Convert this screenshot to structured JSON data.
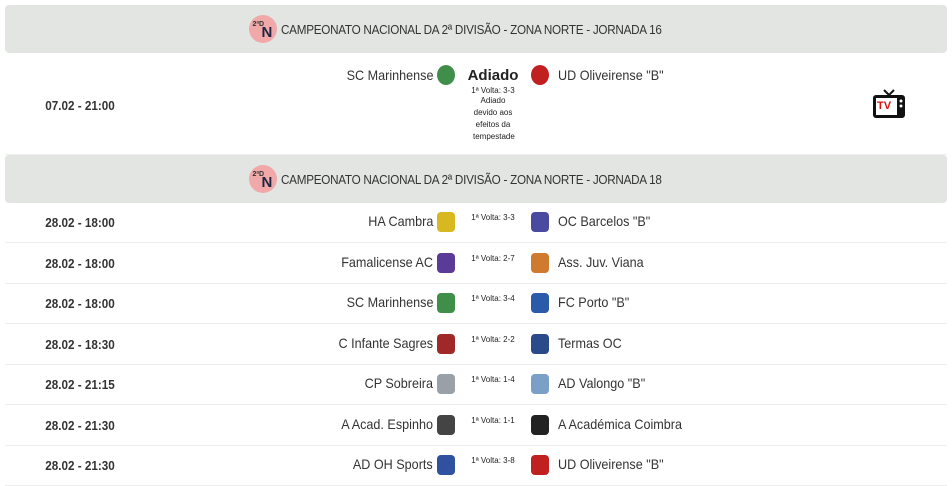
{
  "sections": [
    {
      "title": "CAMPEONATO NACIONAL DA 2ª DIVISÃO - ZONA NORTE - JORNADA 16",
      "logo_text": "2ªD FPP",
      "logo_letter": "N",
      "matches": [
        {
          "date": "07.02 - 21:00",
          "home": "SC Marinhense",
          "away": "UD Oliveirense \"B\"",
          "status": "Adiado",
          "note": "1ª Volta: 3-3",
          "detail": "Adiado devido aos efeitos da tempestade",
          "broadcast": "TV em Direto"
        }
      ]
    },
    {
      "title": "CAMPEONATO NACIONAL DA 2ª DIVISÃO - ZONA NORTE - JORNADA 18",
      "logo_text": "2ªD FPP",
      "logo_letter": "N",
      "matches": [
        {
          "date": "28.02 - 18:00",
          "home": "HA Cambra",
          "away": "OC Barcelos \"B\"",
          "note": "1ª Volta: 3-3",
          "home_color": "#d8b820",
          "away_color": "#4a4aa0"
        },
        {
          "date": "28.02 - 18:00",
          "home": "Famalicense AC",
          "away": "Ass. Juv. Viana",
          "note": "1ª Volta: 2-7",
          "home_color": "#5a3c98",
          "away_color": "#d07a30"
        },
        {
          "date": "28.02 - 18:00",
          "home": "SC Marinhense",
          "away": "FC Porto \"B\"",
          "note": "1ª Volta: 3-4",
          "home_color": "#3f8f4a",
          "away_color": "#2a5aa8"
        },
        {
          "date": "28.02 - 18:30",
          "home": "C Infante Sagres",
          "away": "Termas OC",
          "note": "1ª Volta: 2-2",
          "home_color": "#a02828",
          "away_color": "#2a4a8a"
        },
        {
          "date": "28.02 - 21:15",
          "home": "CP Sobreira",
          "away": "AD Valongo \"B\"",
          "note": "1ª Volta: 1-4",
          "home_color": "#9aa0a8",
          "away_color": "#7aa0c8"
        },
        {
          "date": "28.02 - 21:30",
          "home": "A Acad. Espinho",
          "away": "A Académica Coimbra",
          "note": "1ª Volta: 1-1",
          "home_color": "#444444",
          "away_color": "#222222"
        },
        {
          "date": "28.02 - 21:30",
          "home": "AD OH Sports",
          "away": "UD Oliveirense \"B\"",
          "note": "1ª Volta: 3-8",
          "home_color": "#3050a0",
          "away_color": "#c02020"
        }
      ]
    }
  ],
  "colors": {
    "header_bg": "#e3e5e3",
    "tv_red": "#e01010"
  }
}
